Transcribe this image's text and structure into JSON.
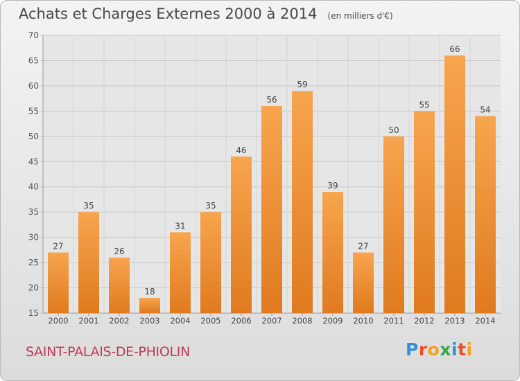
{
  "header": {
    "title": "Achats et Charges Externes 2000 à 2014",
    "unit": "(en milliers d'€)"
  },
  "footer": {
    "town": "SAINT-PALAIS-DE-PHIOLIN",
    "logo_letters": [
      "P",
      "r",
      "o",
      "x",
      "i",
      "t",
      "i"
    ],
    "logo_colors": [
      "#2f8fd8",
      "#e8502a",
      "#f2a21d",
      "#3aa64a",
      "#2f8fd8",
      "#e8502a",
      "#f2a21d"
    ]
  },
  "chart_data": {
    "type": "bar",
    "title": "Achats et Charges Externes 2000 à 2014",
    "categories": [
      "2000",
      "2001",
      "2002",
      "2003",
      "2004",
      "2005",
      "2006",
      "2007",
      "2008",
      "2009",
      "2010",
      "2011",
      "2012",
      "2013",
      "2014"
    ],
    "values": [
      27,
      35,
      26,
      18,
      31,
      35,
      46,
      56,
      59,
      39,
      27,
      50,
      55,
      66,
      54
    ],
    "ylim": [
      15,
      70
    ],
    "yticks": [
      15,
      20,
      25,
      30,
      35,
      40,
      45,
      50,
      55,
      60,
      65,
      70
    ],
    "grid": true,
    "bar_color_top": "#f7a54e",
    "bar_color_bottom": "#e07a1f"
  }
}
